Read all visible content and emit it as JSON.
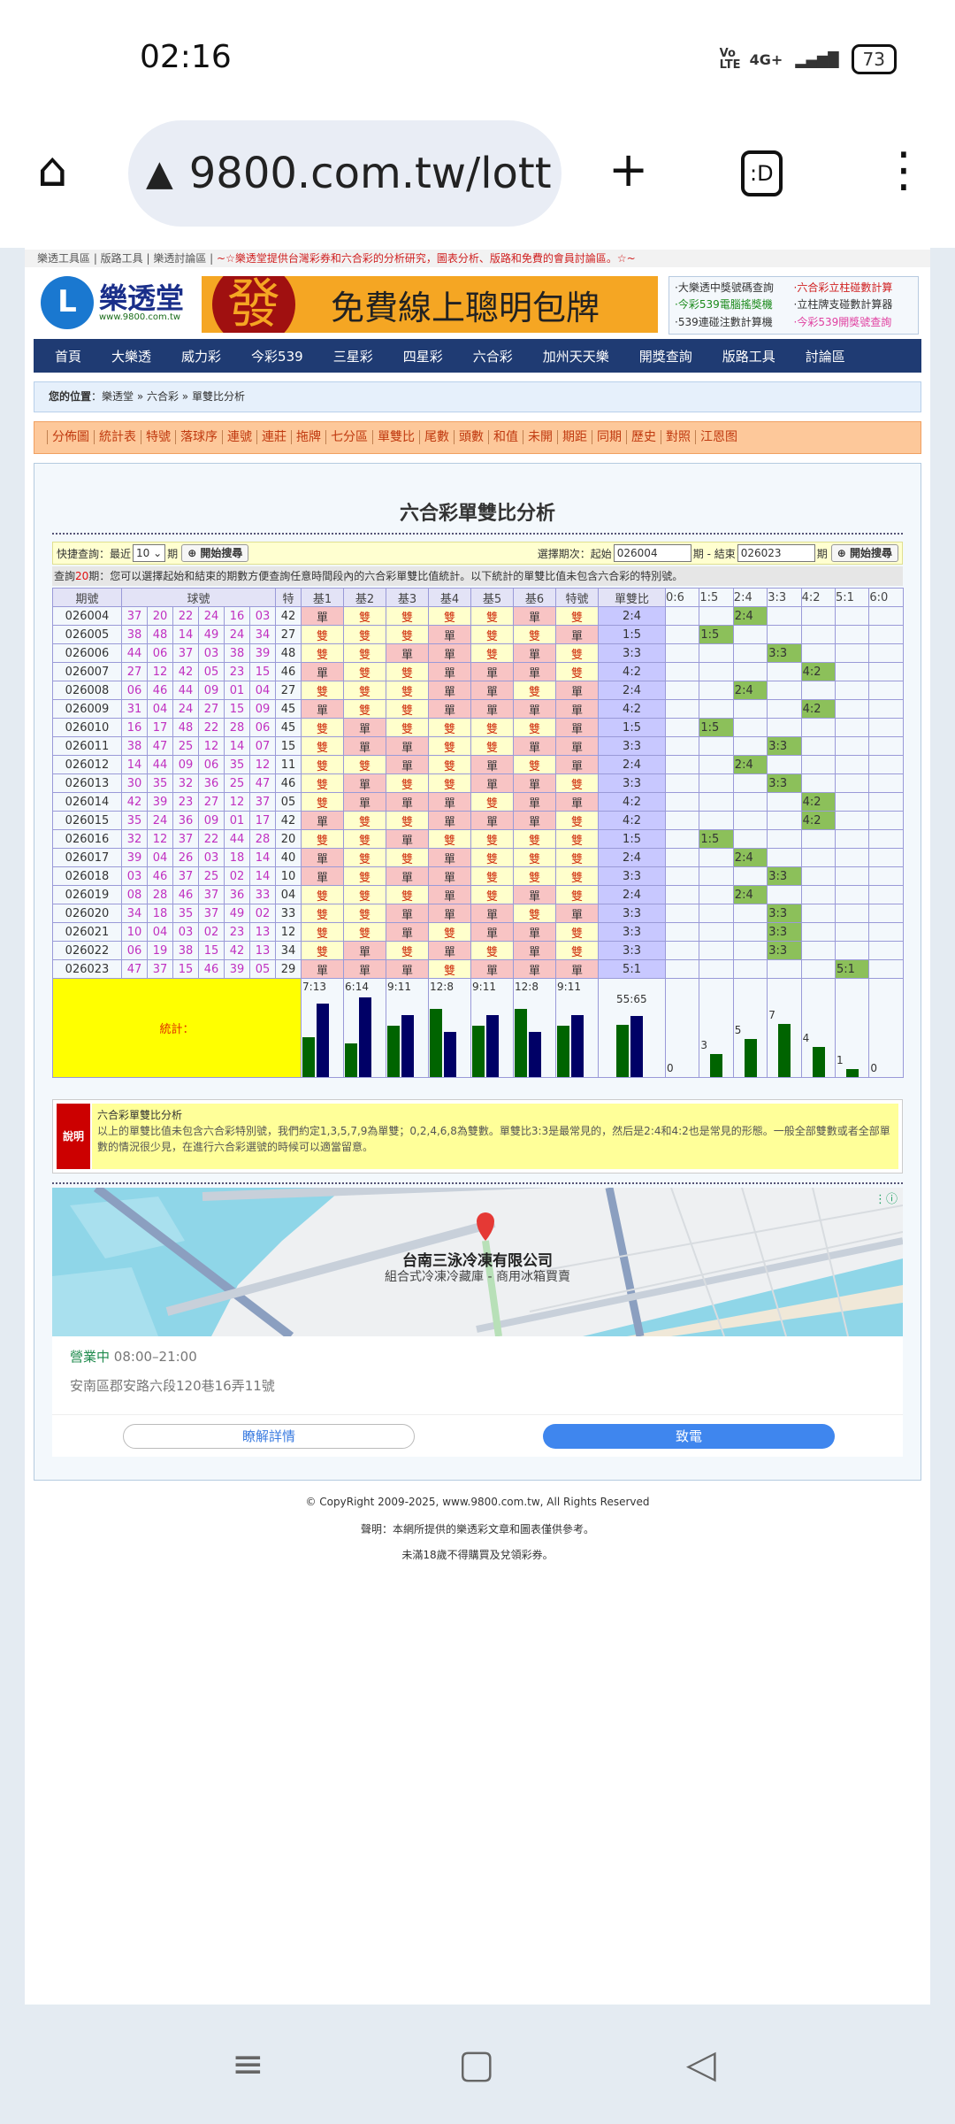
{
  "status": {
    "time": "02:16",
    "network": "4G+",
    "volte": "Vo LTE",
    "battery": "73"
  },
  "browser": {
    "url": "9800.com.tw/lott",
    "tab_label": ":D"
  },
  "toplinks": {
    "links": "樂透工具區 | 版路工具 | 樂透討論區 |",
    "slogan": "~☆樂透堂提供台灣彩券和六合彩的分析研究，圖表分析、版路和免費的會員討論區。☆~"
  },
  "logo": {
    "name": "樂透堂",
    "url": "www.9800.com.tw",
    "mark": "L"
  },
  "banner": {
    "char": "發",
    "text": "免費線上聰明包牌"
  },
  "quicklinks": [
    {
      "label": "·大樂透中獎號碼查詢",
      "color": "#333333"
    },
    {
      "label": "·六合彩立柱碰數計算",
      "color": "#d02020"
    },
    {
      "label": "·今彩539電腦搖獎機",
      "color": "#1a8a1a"
    },
    {
      "label": "·立柱牌支碰數計算器",
      "color": "#333333"
    },
    {
      "label": "·539連碰注數計算機",
      "color": "#333333"
    },
    {
      "label": "·今彩539開獎號查詢",
      "color": "#e040a0"
    }
  ],
  "nav": [
    "首頁",
    "大樂透",
    "威力彩",
    "今彩539",
    "三星彩",
    "四星彩",
    "六合彩",
    "加州天天樂",
    "開獎查詢",
    "版路工具",
    "討論區"
  ],
  "breadcrumb": {
    "label": "您的位置",
    "path": "：樂透堂 » 六合彩 » 單雙比分析"
  },
  "menu": [
    "分佈圖",
    "統計表",
    "特號",
    "落球序",
    "連號",
    "連莊",
    "拖牌",
    "七分區",
    "單雙比",
    "尾數",
    "頭數",
    "和值",
    "未開",
    "期距",
    "同期",
    "歷史",
    "對照",
    "江恩图"
  ],
  "page_title": "六合彩單雙比分析",
  "query": {
    "quick_label": "快捷查詢：最近",
    "recent_value": "10",
    "period_unit": "期",
    "search_btn": "開始搜尋",
    "range_label": "選擇期次：起始",
    "start": "026004",
    "mid": "期 - 結束",
    "end": "026023",
    "end_unit": "期"
  },
  "info": {
    "prefix": "查詢",
    "count": "20",
    "suffix": "期：您可以選擇起始和結束的期數方便查詢任意時間段內的六合彩單雙比值統計。以下統計的單雙比值未包含六合彩的特別號。"
  },
  "table": {
    "headers": {
      "period": "期號",
      "balls": "球號",
      "special": "特",
      "bases": [
        "基1",
        "基2",
        "基3",
        "基4",
        "基5",
        "基6",
        "特號"
      ],
      "ratio": "單雙比",
      "dist": [
        "0:6",
        "1:5",
        "2:4",
        "3:3",
        "4:2",
        "5:1",
        "6:0"
      ]
    },
    "odd_label": "單",
    "even_label": "雙",
    "rows": [
      {
        "period": "026004",
        "balls": [
          "37",
          "20",
          "22",
          "24",
          "16",
          "03"
        ],
        "special": "42",
        "ratio": "2:4"
      },
      {
        "period": "026005",
        "balls": [
          "38",
          "48",
          "14",
          "49",
          "24",
          "34"
        ],
        "special": "27",
        "ratio": "1:5"
      },
      {
        "period": "026006",
        "balls": [
          "44",
          "06",
          "37",
          "03",
          "38",
          "39"
        ],
        "special": "48",
        "ratio": "3:3"
      },
      {
        "period": "026007",
        "balls": [
          "27",
          "12",
          "42",
          "05",
          "23",
          "15"
        ],
        "special": "46",
        "ratio": "4:2"
      },
      {
        "period": "026008",
        "balls": [
          "06",
          "46",
          "44",
          "09",
          "01",
          "04"
        ],
        "special": "27",
        "ratio": "2:4"
      },
      {
        "period": "026009",
        "balls": [
          "31",
          "04",
          "24",
          "27",
          "15",
          "09"
        ],
        "special": "45",
        "ratio": "4:2"
      },
      {
        "period": "026010",
        "balls": [
          "16",
          "17",
          "48",
          "22",
          "28",
          "06"
        ],
        "special": "45",
        "ratio": "1:5"
      },
      {
        "period": "026011",
        "balls": [
          "38",
          "47",
          "25",
          "12",
          "14",
          "07"
        ],
        "special": "15",
        "ratio": "3:3"
      },
      {
        "period": "026012",
        "balls": [
          "14",
          "44",
          "09",
          "06",
          "35",
          "12"
        ],
        "special": "11",
        "ratio": "2:4"
      },
      {
        "period": "026013",
        "balls": [
          "30",
          "35",
          "32",
          "36",
          "25",
          "47"
        ],
        "special": "46",
        "ratio": "3:3"
      },
      {
        "period": "026014",
        "balls": [
          "42",
          "39",
          "23",
          "27",
          "12",
          "37"
        ],
        "special": "05",
        "ratio": "4:2"
      },
      {
        "period": "026015",
        "balls": [
          "35",
          "24",
          "36",
          "09",
          "01",
          "17"
        ],
        "special": "42",
        "ratio": "4:2"
      },
      {
        "period": "026016",
        "balls": [
          "32",
          "12",
          "37",
          "22",
          "44",
          "28"
        ],
        "special": "20",
        "ratio": "1:5"
      },
      {
        "period": "026017",
        "balls": [
          "39",
          "04",
          "26",
          "03",
          "18",
          "14"
        ],
        "special": "40",
        "ratio": "2:4"
      },
      {
        "period": "026018",
        "balls": [
          "03",
          "46",
          "37",
          "25",
          "02",
          "14"
        ],
        "special": "10",
        "ratio": "3:3"
      },
      {
        "period": "026019",
        "balls": [
          "08",
          "28",
          "46",
          "37",
          "36",
          "33"
        ],
        "special": "04",
        "ratio": "2:4"
      },
      {
        "period": "026020",
        "balls": [
          "34",
          "18",
          "35",
          "37",
          "49",
          "02"
        ],
        "special": "33",
        "ratio": "3:3"
      },
      {
        "period": "026021",
        "balls": [
          "10",
          "04",
          "03",
          "02",
          "23",
          "13"
        ],
        "special": "12",
        "ratio": "3:3"
      },
      {
        "period": "026022",
        "balls": [
          "06",
          "19",
          "38",
          "15",
          "42",
          "13"
        ],
        "special": "34",
        "ratio": "3:3"
      },
      {
        "period": "026023",
        "balls": [
          "47",
          "37",
          "15",
          "46",
          "39",
          "05"
        ],
        "special": "29",
        "ratio": "5:1"
      }
    ],
    "stats_label": "統計：",
    "base_stats": [
      "7:13",
      "6:14",
      "9:11",
      "12:8",
      "9:11",
      "12:8",
      "9:11"
    ],
    "ratio_stat": "55:65",
    "dist_counts": [
      "0",
      "3",
      "5",
      "7",
      "4",
      "1",
      "0"
    ],
    "colors": {
      "odd_bar": "#006400",
      "even_bar": "#000066",
      "odd_cell": "#f8c4c4",
      "even_cell": "#ffffcc",
      "hit_cell": "#8cc05a"
    }
  },
  "explain": {
    "tag": "說明",
    "title": "六合彩單雙比分析",
    "text": "以上的單雙比值未包含六合彩特別號，我們約定1,3,5,7,9為單雙；0,2,4,6,8為雙數。單雙比3:3是最常見的，然后是2:4和4:2也是常見的形態。一般全部雙數或者全部單數的情況很少見，在進行六合彩選號的時候可以適當留意。"
  },
  "ad": {
    "name": "台南三泳冷凍有限公司",
    "subtitle": "組合式冷凍冷藏庫 - 商用冰箱買賣",
    "open": "營業中",
    "hours": "08:00–21:00",
    "address": "安南區郡安路六段120巷16弄11號",
    "details_btn": "瞭解詳情",
    "call_btn": "致電"
  },
  "footer": {
    "copyright": "© CopyRight 2009-2025, www.9800.com.tw, All Rights Reserved",
    "disclaimer": "聲明：本網所提供的樂透彩文章和圖表僅供參考。",
    "age": "未滿18歲不得購買及兌領彩券。"
  }
}
